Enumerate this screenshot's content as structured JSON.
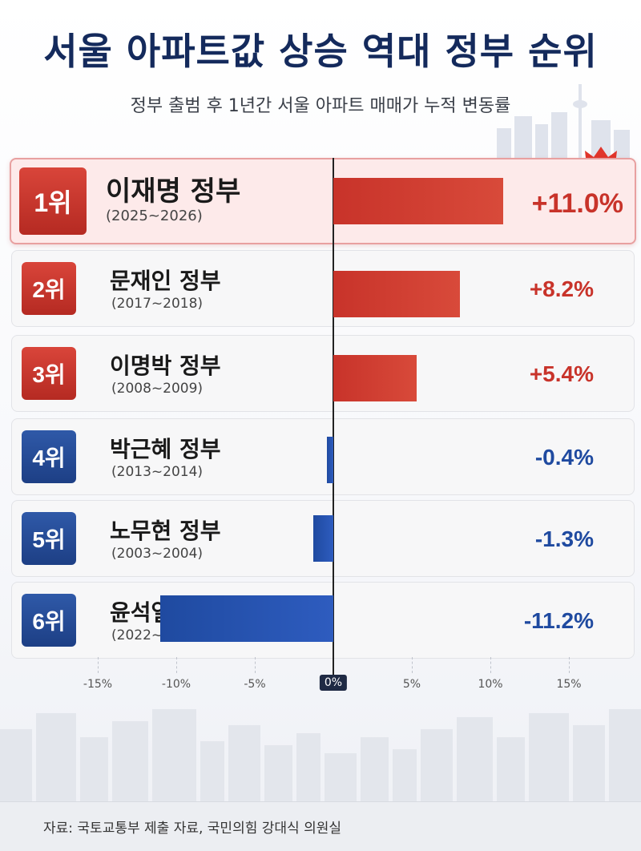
{
  "title": "서울 아파트값 상승 역대 정부 순위",
  "subtitle": "정부 출범 후 1년간 서울 아파트 매매가 누적 변동률",
  "source": "자료: 국토교통부 제출 자료, 국민의힘 강대식 의원실",
  "colors": {
    "positive": "#c8332a",
    "negative": "#1f4aa0",
    "title": "#142a5c"
  },
  "chart_data": {
    "type": "bar",
    "orientation": "horizontal",
    "title": "서울 아파트값 상승 역대 정부 순위",
    "subtitle": "정부 출범 후 1년간 서울 아파트 매매가 누적 변동률",
    "xlim": [
      -15,
      15
    ],
    "grid": true,
    "x_ticks": [
      "-15%",
      "-10%",
      "-5%",
      "0%",
      "5%",
      "10%",
      "15%"
    ],
    "categories": [
      "이재명 정부",
      "문재인 정부",
      "이명박 정부",
      "박근혜 정부",
      "노무현 정부",
      "윤석열 정부"
    ],
    "series": [
      {
        "values": [
          11.0,
          8.2,
          5.4,
          -0.4,
          -1.3,
          -11.2
        ]
      }
    ],
    "rows": [
      {
        "rank": "1위",
        "name": "이재명 정부",
        "years": "(2025~2026)",
        "value": 11.0,
        "label": "+11.0%"
      },
      {
        "rank": "2위",
        "name": "문재인 정부",
        "years": "(2017~2018)",
        "value": 8.2,
        "label": "+8.2%"
      },
      {
        "rank": "3위",
        "name": "이명박 정부",
        "years": "(2008~2009)",
        "value": 5.4,
        "label": "+5.4%"
      },
      {
        "rank": "4위",
        "name": "박근혜 정부",
        "years": "(2013~2014)",
        "value": -0.4,
        "label": "-0.4%"
      },
      {
        "rank": "5위",
        "name": "노무현 정부",
        "years": "(2003~2004)",
        "value": -1.3,
        "label": "-1.3%"
      },
      {
        "rank": "6위",
        "name": "윤석열 정부",
        "years": "(2022~2023)",
        "value": -11.2,
        "label": "-11.2%"
      }
    ]
  }
}
